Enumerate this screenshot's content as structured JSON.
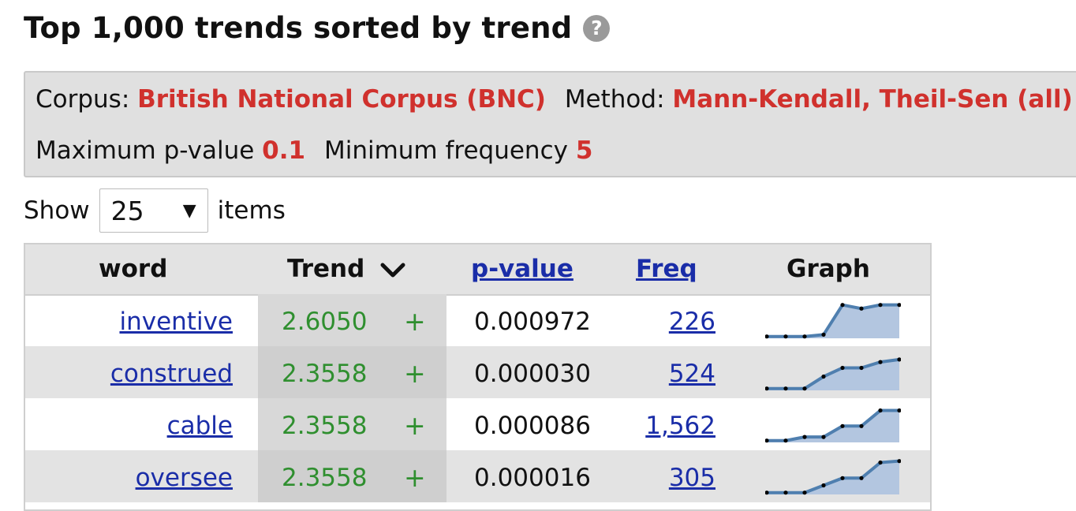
{
  "header": {
    "title": "Top 1,000 trends sorted by trend",
    "help_icon": "?"
  },
  "settings": {
    "corpus_label": "Corpus:",
    "corpus_value": "British National Corpus (BNC)",
    "method_label": "Method:",
    "method_value": "Mann-Kendall, Theil-Sen (all)",
    "pvalue_label": "Maximum p-value",
    "pvalue_value": "0.1",
    "minfreq_label": "Minimum frequency",
    "minfreq_value": "5"
  },
  "show": {
    "prefix": "Show",
    "selected": "25",
    "suffix": "items"
  },
  "table": {
    "headers": {
      "word": "word",
      "trend": "Trend",
      "pvalue": "p-value",
      "freq": "Freq",
      "graph": "Graph"
    },
    "rows": [
      {
        "word": "inventive",
        "trend": "2.6050",
        "sign": "+",
        "pvalue": "0.000972",
        "freq": "226",
        "graph": [
          0.05,
          0.05,
          0.05,
          0.1,
          0.92,
          0.82,
          0.92,
          0.92
        ]
      },
      {
        "word": "construed",
        "trend": "2.3558",
        "sign": "+",
        "pvalue": "0.000030",
        "freq": "524",
        "graph": [
          0.05,
          0.05,
          0.05,
          0.38,
          0.62,
          0.62,
          0.78,
          0.85
        ]
      },
      {
        "word": "cable",
        "trend": "2.3558",
        "sign": "+",
        "pvalue": "0.000086",
        "freq": "1,562",
        "graph": [
          0.05,
          0.05,
          0.15,
          0.15,
          0.45,
          0.45,
          0.88,
          0.88
        ]
      },
      {
        "word": "oversee",
        "trend": "2.3558",
        "sign": "+",
        "pvalue": "0.000016",
        "freq": "305",
        "graph": [
          0.05,
          0.05,
          0.05,
          0.25,
          0.45,
          0.45,
          0.88,
          0.92
        ]
      }
    ]
  },
  "colors": {
    "accent_red": "#d0312d",
    "link_blue": "#1a2da8",
    "trend_green": "#2f8f2f",
    "graph_line": "#4f7faf",
    "graph_fill": "#b3c6e0"
  }
}
